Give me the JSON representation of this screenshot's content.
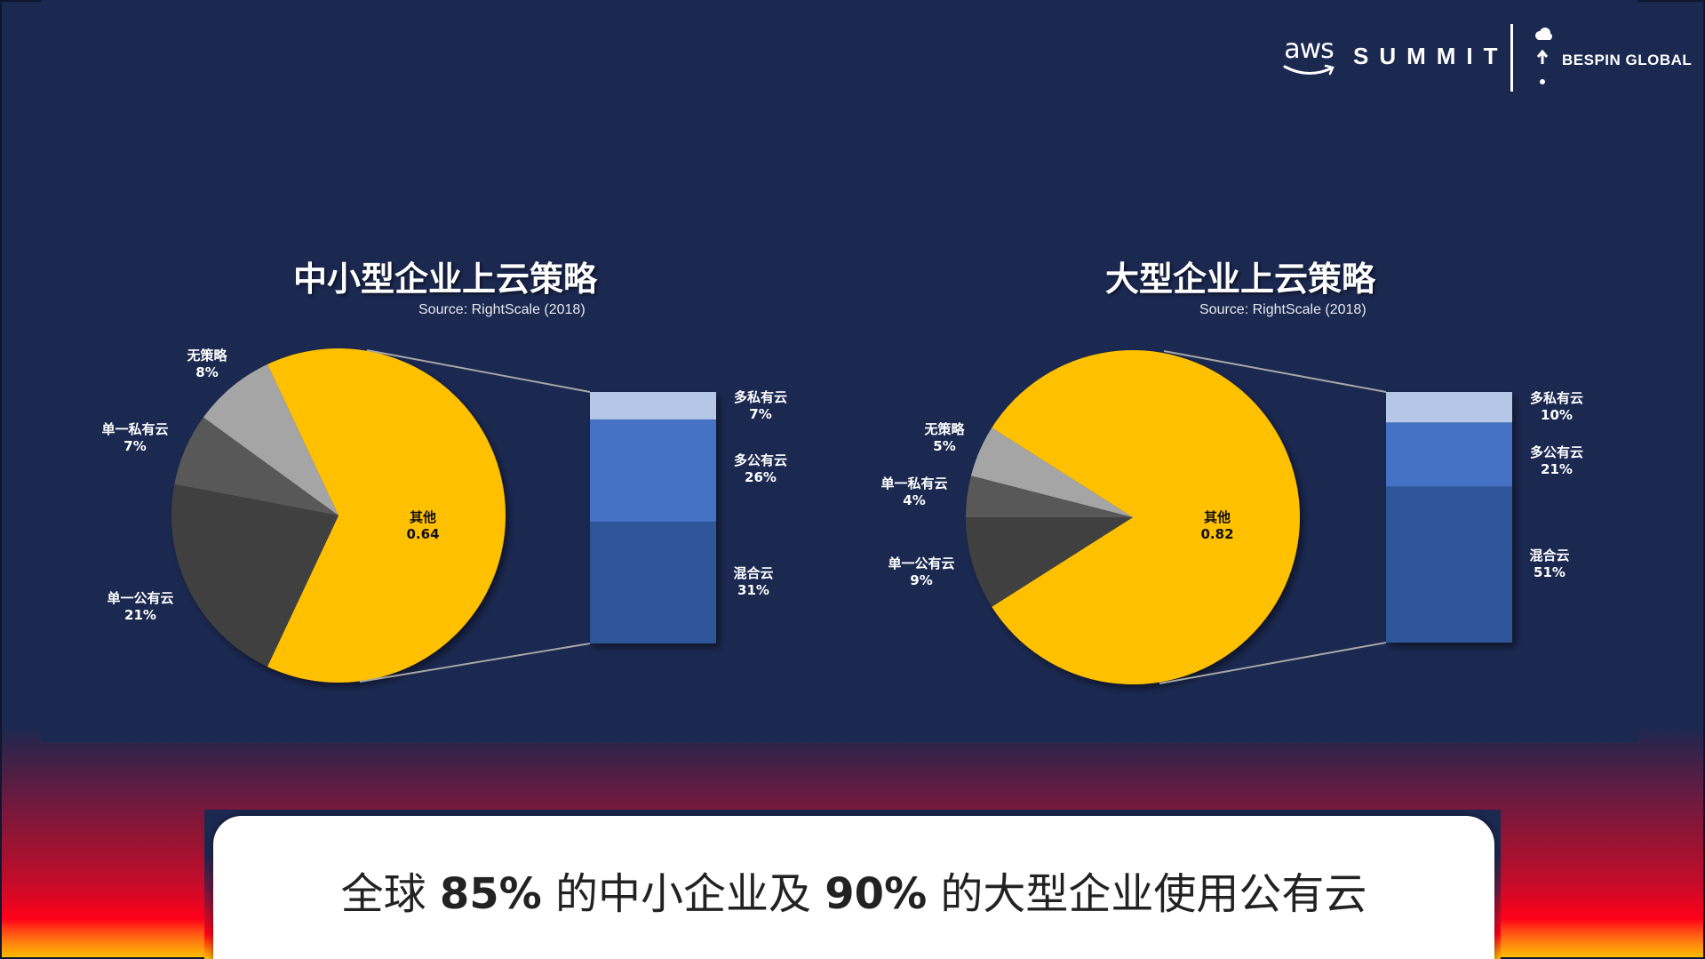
{
  "header": {
    "aws_logo_text": "aws",
    "summit_text": "SUMMIT",
    "partner_text": "BESPIN GLOBAL"
  },
  "colors": {
    "background": "#1b2850",
    "other_slice": "#ffc000",
    "no_strategy": "#a5a5a5",
    "single_private": "#595959",
    "single_public": "#404040",
    "multi_private": "#b4c7e7",
    "multi_public": "#4472c4",
    "hybrid": "#2f5597",
    "connector": "#a6a6a6"
  },
  "left_chart": {
    "title": "中小型企业上云策略",
    "source": "Source: RightScale (2018)",
    "pie_labels": {
      "no_strategy": {
        "name": "无策略",
        "value": "8%"
      },
      "single_private": {
        "name": "单一私有云",
        "value": "7%"
      },
      "single_public": {
        "name": "单一公有云",
        "value": "21%"
      },
      "other": {
        "name": "其他",
        "value": "0.64"
      }
    },
    "bar_labels": {
      "multi_private": {
        "name": "多私有云",
        "value": "7%"
      },
      "multi_public": {
        "name": "多公有云",
        "value": "26%"
      },
      "hybrid": {
        "name": "混合云",
        "value": "31%"
      }
    }
  },
  "right_chart": {
    "title": "大型企业上云策略",
    "source": "Source: RightScale (2018)",
    "pie_labels": {
      "no_strategy": {
        "name": "无策略",
        "value": "5%"
      },
      "single_private": {
        "name": "单一私有云",
        "value": "4%"
      },
      "single_public": {
        "name": "单一公有云",
        "value": "9%"
      },
      "other": {
        "name": "其他",
        "value": "0.82"
      }
    },
    "bar_labels": {
      "multi_private": {
        "name": "多私有云",
        "value": "10%"
      },
      "multi_public": {
        "name": "多公有云",
        "value": "21%"
      },
      "hybrid": {
        "name": "混合云",
        "value": "51%"
      }
    }
  },
  "callout": {
    "part1": "全球 ",
    "num1": "85%",
    "part2": " 的中小企业及 ",
    "num2": "90%",
    "part3": " 的大型企业使用公有云"
  },
  "chart_data": [
    {
      "type": "pie",
      "title": "中小型企业上云策略",
      "subtitle": "Source: RightScale (2018)",
      "categories": [
        "其他",
        "单一公有云",
        "单一私有云",
        "无策略"
      ],
      "values": [
        64,
        21,
        7,
        8
      ],
      "unit": "%",
      "breakdown": {
        "of": "其他",
        "type": "stacked-bar",
        "categories": [
          "多私有云",
          "多公有云",
          "混合云"
        ],
        "values": [
          7,
          26,
          31
        ]
      }
    },
    {
      "type": "pie",
      "title": "大型企业上云策略",
      "subtitle": "Source: RightScale (2018)",
      "categories": [
        "其他",
        "单一公有云",
        "单一私有云",
        "无策略"
      ],
      "values": [
        82,
        9,
        4,
        5
      ],
      "unit": "%",
      "breakdown": {
        "of": "其他",
        "type": "stacked-bar",
        "categories": [
          "多私有云",
          "多公有云",
          "混合云"
        ],
        "values": [
          10,
          21,
          51
        ]
      }
    }
  ]
}
